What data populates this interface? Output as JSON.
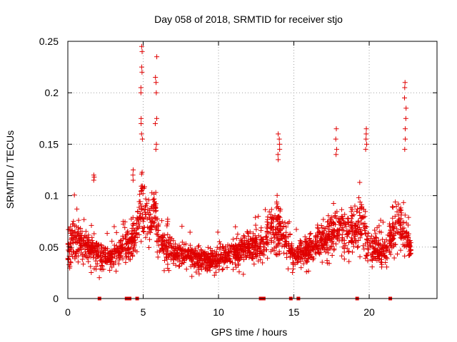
{
  "chart_data": {
    "type": "scatter",
    "title": "Day 058 of 2018, SRMTID for receiver stjo",
    "xlabel": "GPS time / hours",
    "ylabel": "SRMTID / TECUs",
    "xlim": [
      0,
      24.5
    ],
    "ylim": [
      0,
      0.25
    ],
    "x_ticks": [
      0,
      5,
      10,
      15,
      20
    ],
    "y_ticks": [
      0,
      0.05,
      0.1,
      0.15,
      0.2,
      0.25
    ],
    "x_tick_labels": [
      "0",
      "5",
      "10",
      "15",
      "20"
    ],
    "y_tick_labels": [
      "0",
      "0.05",
      "0.1",
      "0.15",
      "0.2",
      "0.25"
    ],
    "grid": true,
    "marker": "+",
    "color": "#e00000",
    "envelope": [
      [
        0.0,
        0.055,
        0.035
      ],
      [
        0.5,
        0.085,
        0.045
      ],
      [
        1.0,
        0.06,
        0.04
      ],
      [
        1.5,
        0.06,
        0.04
      ],
      [
        2.0,
        0.055,
        0.035
      ],
      [
        2.5,
        0.045,
        0.03
      ],
      [
        3.0,
        0.05,
        0.035
      ],
      [
        3.5,
        0.055,
        0.04
      ],
      [
        4.0,
        0.065,
        0.04
      ],
      [
        4.5,
        0.075,
        0.045
      ],
      [
        4.8,
        0.115,
        0.07
      ],
      [
        5.0,
        0.11,
        0.07
      ],
      [
        5.5,
        0.09,
        0.06
      ],
      [
        5.8,
        0.1,
        0.07
      ],
      [
        6.0,
        0.07,
        0.05
      ],
      [
        6.5,
        0.06,
        0.04
      ],
      [
        7.0,
        0.055,
        0.035
      ],
      [
        8.0,
        0.05,
        0.035
      ],
      [
        9.0,
        0.045,
        0.03
      ],
      [
        10.0,
        0.045,
        0.03
      ],
      [
        11.0,
        0.055,
        0.035
      ],
      [
        12.0,
        0.06,
        0.04
      ],
      [
        13.0,
        0.065,
        0.04
      ],
      [
        13.5,
        0.085,
        0.05
      ],
      [
        14.0,
        0.09,
        0.05
      ],
      [
        14.5,
        0.07,
        0.045
      ],
      [
        15.0,
        0.05,
        0.035
      ],
      [
        15.5,
        0.055,
        0.035
      ],
      [
        16.0,
        0.06,
        0.04
      ],
      [
        17.0,
        0.07,
        0.045
      ],
      [
        18.0,
        0.085,
        0.05
      ],
      [
        18.5,
        0.075,
        0.05
      ],
      [
        19.0,
        0.08,
        0.05
      ],
      [
        19.5,
        0.1,
        0.055
      ],
      [
        20.0,
        0.06,
        0.04
      ],
      [
        21.0,
        0.055,
        0.035
      ],
      [
        22.0,
        0.09,
        0.06
      ],
      [
        22.5,
        0.07,
        0.05
      ],
      [
        22.8,
        0.05,
        0.035
      ]
    ],
    "spikes": [
      {
        "x": 4.9,
        "values": [
          0.245,
          0.24,
          0.225,
          0.22,
          0.205,
          0.2,
          0.175,
          0.17,
          0.16,
          0.155
        ]
      },
      {
        "x": 5.85,
        "values": [
          0.235,
          0.215,
          0.21,
          0.2,
          0.175,
          0.17,
          0.15,
          0.145
        ]
      },
      {
        "x": 22.4,
        "values": [
          0.21,
          0.205,
          0.195,
          0.185,
          0.175,
          0.165,
          0.155,
          0.145
        ]
      },
      {
        "x": 14.0,
        "values": [
          0.16,
          0.155,
          0.15,
          0.145,
          0.14,
          0.135
        ]
      },
      {
        "x": 19.8,
        "values": [
          0.165,
          0.16,
          0.155,
          0.15,
          0.145
        ]
      },
      {
        "x": 17.8,
        "values": [
          0.165,
          0.155,
          0.145,
          0.14
        ]
      },
      {
        "x": 4.3,
        "values": [
          0.125,
          0.12,
          0.115
        ]
      },
      {
        "x": 1.7,
        "values": [
          0.12,
          0.118,
          0.115
        ]
      }
    ],
    "gap_markers_x": [
      2.1,
      3.9,
      4.1,
      4.6,
      12.8,
      13.0,
      14.8,
      15.3,
      19.2,
      21.4
    ]
  }
}
